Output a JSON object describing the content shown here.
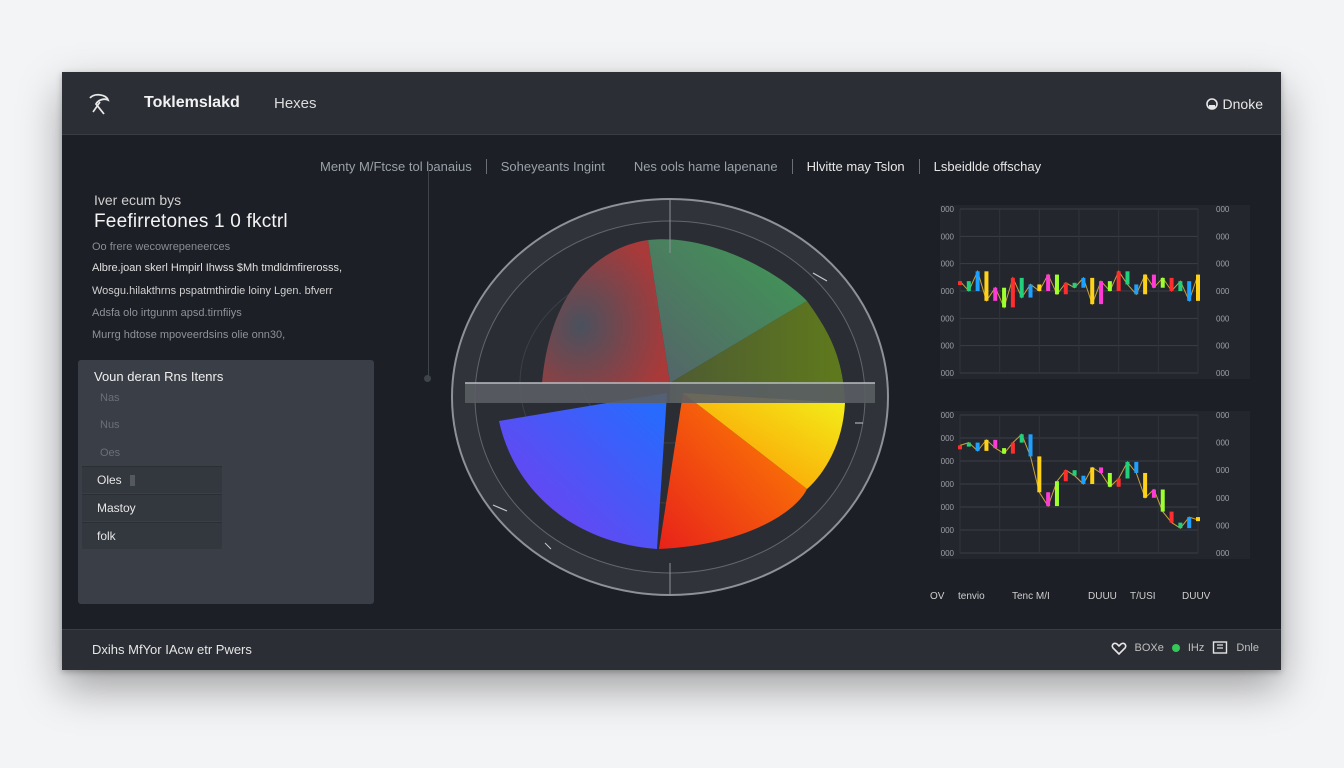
{
  "header": {
    "app_title": "Toklemslakd",
    "menu_label": "Hexes",
    "user_label": "Dnoke"
  },
  "tabs": [
    {
      "label": "Menty M/Ftcse tol  banaius"
    },
    {
      "label": "Soheyeants Ingint"
    },
    {
      "label": "Nes ools hame lapenane"
    },
    {
      "label": "Hlvitte may Tslon"
    },
    {
      "label": "Lsbeidlde offschay"
    }
  ],
  "left": {
    "subtitle": "Iver ecum bys",
    "headline": "Feefirretones 1 0 fkctrl",
    "lines": [
      "Oo frere wecowrepeneerces",
      "Albre.joan skerl Hmpirl  Ihwss $Mh tmdldmfirerosss,",
      "Wosgu.hilakthrns pspatmthirdie  loiny Lgen.  bfverr",
      "Adsfa olo irtgunm apsd.tirnfiiys",
      "Murrg hdtose  mpoveerdsins  olie   onn30,"
    ]
  },
  "panel": {
    "title": "Voun deran Rns Itenrs",
    "ghost_items": [
      "Nas",
      "Nus",
      "Oes"
    ],
    "items": [
      "Oles",
      "Mastoy",
      "folk"
    ]
  },
  "radial_chart": {
    "colors": {
      "top_red": "#b03a3a",
      "top_green": "#3e9c54",
      "top_olive": "#5f7a1c",
      "bottom_purple": "#7c3aed",
      "bottom_blue": "#1f6fff",
      "bottom_red": "#e8221a",
      "bottom_orange": "#ff8a00",
      "bottom_yellow": "#f2f21a"
    }
  },
  "chart_data": [
    {
      "type": "line",
      "title": "",
      "y_left_ticks": [
        "000",
        "000",
        "000",
        "000",
        "000",
        "000",
        "000"
      ],
      "y_right_ticks": [
        "000",
        "000",
        "000",
        "000",
        "000",
        "000",
        "000"
      ],
      "series": [
        {
          "values": [
            56,
            50,
            62,
            44,
            52,
            40,
            58,
            46,
            54,
            50,
            60,
            48,
            55,
            52,
            58,
            42,
            56,
            50,
            62,
            54,
            48,
            60,
            52,
            58,
            50,
            56,
            44,
            60
          ]
        }
      ]
    },
    {
      "type": "line",
      "title": "",
      "y_left_ticks": [
        "000",
        "000",
        "000",
        "000",
        "000",
        "000",
        "000"
      ],
      "y_right_ticks": [
        "000",
        "000",
        "000",
        "000",
        "000",
        "000"
      ],
      "series": [
        {
          "values": [
            78,
            80,
            74,
            82,
            76,
            72,
            80,
            86,
            70,
            44,
            34,
            52,
            60,
            56,
            50,
            62,
            58,
            48,
            54,
            66,
            58,
            40,
            46,
            30,
            22,
            18,
            26,
            24
          ]
        }
      ]
    }
  ],
  "x_labels": [
    "OV",
    "tenvio",
    "Tenc  M/I",
    "DUUU",
    "T/USI",
    "DUUV"
  ],
  "status": {
    "left_text": "Dxihs  MfYor IAcw etr Pwers",
    "right_items": [
      "BOXe",
      "IHz",
      "Dnle"
    ]
  }
}
